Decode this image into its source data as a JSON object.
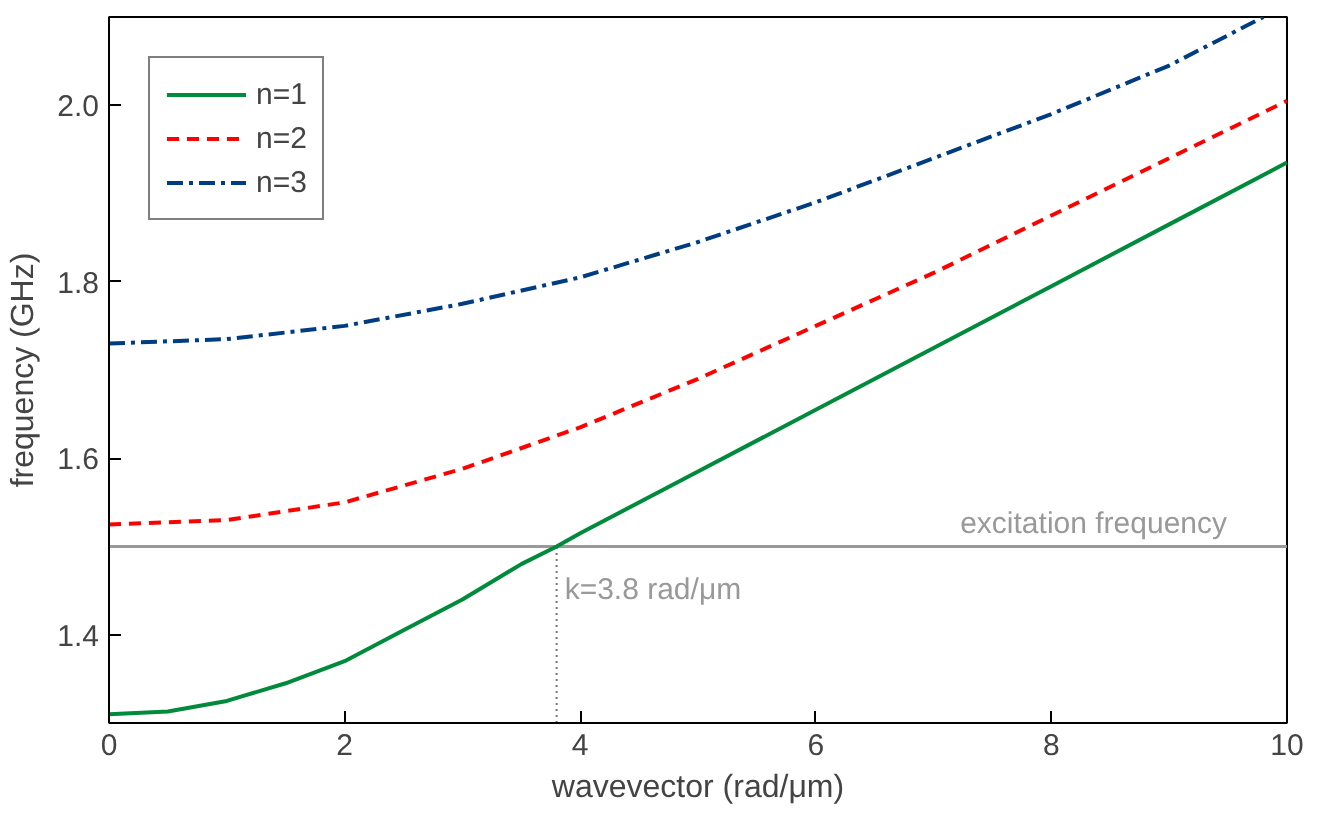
{
  "chart_data": {
    "type": "line",
    "xlabel": "wavevector (rad/μm)",
    "ylabel": "frequency (GHz)",
    "xlim": [
      0,
      10
    ],
    "ylim": [
      1.3,
      2.1
    ],
    "xticks": [
      0,
      2,
      4,
      6,
      8,
      10
    ],
    "yticks": [
      {
        "value": 1.4,
        "label": "1.4"
      },
      {
        "value": 1.6,
        "label": "1.6"
      },
      {
        "value": 1.8,
        "label": "1.8"
      },
      {
        "value": 2.0,
        "label": "2.0"
      }
    ],
    "series": [
      {
        "name": "n=1",
        "color": "#008a3c",
        "line_style": "solid",
        "x": [
          0,
          0.5,
          1,
          1.5,
          2,
          2.5,
          3,
          3.5,
          3.8,
          4,
          5,
          6,
          7,
          8,
          9,
          10
        ],
        "values": [
          1.31,
          1.313,
          1.325,
          1.345,
          1.37,
          1.405,
          1.44,
          1.48,
          1.5,
          1.515,
          1.585,
          1.655,
          1.725,
          1.795,
          1.865,
          1.935
        ]
      },
      {
        "name": "n=2",
        "color": "#ff0000",
        "line_style": "dashed",
        "x": [
          0,
          1,
          2,
          3,
          4,
          5,
          6,
          7,
          8,
          9,
          10
        ],
        "values": [
          1.525,
          1.53,
          1.55,
          1.588,
          1.635,
          1.69,
          1.75,
          1.81,
          1.875,
          1.94,
          2.005
        ]
      },
      {
        "name": "n=3",
        "color": "#003c82",
        "line_style": "dashdot",
        "x": [
          0,
          1,
          2,
          3,
          4,
          5,
          6,
          7,
          8,
          9,
          9.8
        ],
        "values": [
          1.73,
          1.735,
          1.75,
          1.775,
          1.805,
          1.845,
          1.89,
          1.94,
          1.99,
          2.045,
          2.1
        ]
      }
    ],
    "ref_lines": [
      {
        "axis": "y",
        "value": 1.5,
        "label": "excitation frequency",
        "color": "#999999",
        "line_style": "solid"
      },
      {
        "axis": "x",
        "value": 3.8,
        "label": "k=3.8 rad/μm",
        "color": "#777777",
        "line_style": "dotted"
      }
    ],
    "grid": false,
    "legend": "top left",
    "marker": "none"
  }
}
